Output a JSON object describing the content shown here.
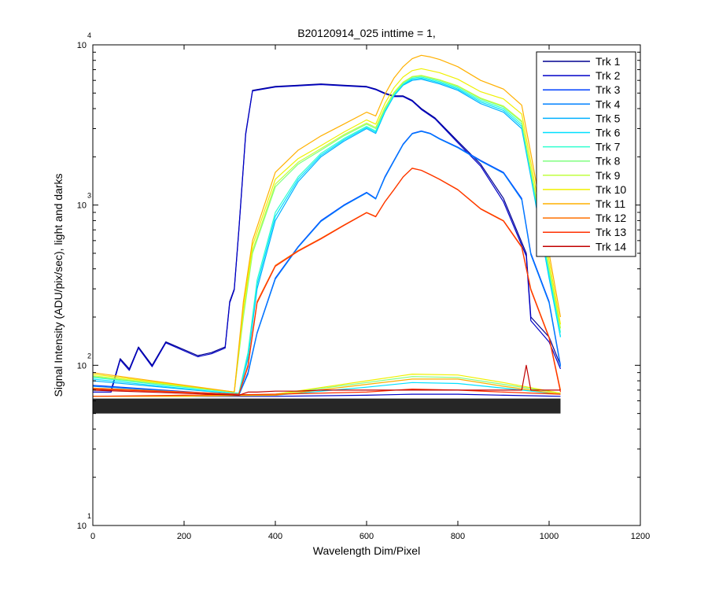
{
  "chart_data": {
    "type": "line",
    "title": "B20120914_025 inttime = 1,",
    "xlabel": "Wavelength Dim/Pixel",
    "ylabel": "Signal Intensity (ADU/pix/sec), light and darks",
    "xlim": [
      0,
      1200
    ],
    "ylim": [
      10,
      10000
    ],
    "yscale": "log",
    "grid": false,
    "legend": "top-right",
    "x_ticks": [
      "0",
      "200",
      "400",
      "600",
      "800",
      "1000",
      "1200"
    ],
    "x_tick_values": [
      0,
      200,
      400,
      600,
      800,
      1000,
      1200
    ],
    "y_tick_values": [
      10,
      100,
      1000,
      10000
    ],
    "y_ticks": [
      {
        "base": "10",
        "exp": "1"
      },
      {
        "base": "10",
        "exp": "2"
      },
      {
        "base": "10",
        "exp": "3"
      },
      {
        "base": "10",
        "exp": "4"
      }
    ],
    "series": [
      {
        "name": "Trk 1",
        "color": "#000090",
        "x": [
          0,
          40,
          60,
          80,
          100,
          130,
          160,
          200,
          230,
          260,
          290,
          300,
          310,
          320,
          335,
          350,
          400,
          450,
          500,
          550,
          600,
          620,
          640,
          660,
          680,
          700,
          720,
          750,
          800,
          850,
          900,
          950,
          960,
          1000,
          1025
        ],
        "y": [
          70,
          70,
          110,
          95,
          130,
          100,
          140,
          125,
          115,
          120,
          130,
          250,
          300,
          700,
          2800,
          5200,
          5500,
          5600,
          5700,
          5600,
          5500,
          5300,
          5000,
          4800,
          4800,
          4500,
          4000,
          3500,
          2500,
          1800,
          1100,
          500,
          200,
          150,
          100
        ]
      },
      {
        "name": "Trk 2",
        "color": "#0000c8",
        "x": [
          0,
          40,
          60,
          80,
          100,
          130,
          160,
          200,
          230,
          260,
          290,
          300,
          310,
          320,
          335,
          350,
          400,
          450,
          500,
          550,
          600,
          620,
          640,
          660,
          680,
          700,
          720,
          750,
          800,
          850,
          900,
          950,
          960,
          1000,
          1025
        ],
        "y": [
          68,
          68,
          108,
          93,
          128,
          98,
          138,
          123,
          113,
          118,
          128,
          245,
          295,
          690,
          2750,
          5150,
          5450,
          5550,
          5650,
          5550,
          5450,
          5250,
          4950,
          4750,
          4750,
          4450,
          3950,
          3450,
          2450,
          1750,
          1050,
          480,
          190,
          140,
          95
        ]
      },
      {
        "name": "Trk 3",
        "color": "#0040ff",
        "x": [
          0,
          320,
          340,
          360,
          400,
          450,
          500,
          550,
          600,
          620,
          640,
          660,
          680,
          700,
          720,
          740,
          760,
          800,
          850,
          900,
          940,
          960,
          1000,
          1025
        ],
        "y": [
          75,
          65,
          90,
          160,
          350,
          550,
          800,
          1000,
          1200,
          1100,
          1500,
          1900,
          2400,
          2800,
          2900,
          2800,
          2600,
          2300,
          1900,
          1600,
          1100,
          500,
          250,
          100
        ]
      },
      {
        "name": "Trk 4",
        "color": "#0080ff",
        "x": [
          0,
          320,
          340,
          360,
          400,
          450,
          500,
          550,
          600,
          620,
          640,
          660,
          680,
          700,
          720,
          740,
          760,
          800,
          850,
          900,
          940,
          960,
          1000,
          1025
        ],
        "y": [
          74,
          65,
          88,
          158,
          345,
          545,
          790,
          990,
          1190,
          1090,
          1480,
          1880,
          2380,
          2780,
          2880,
          2780,
          2580,
          2280,
          1880,
          1580,
          1080,
          490,
          245,
          98
        ]
      },
      {
        "name": "Trk 5",
        "color": "#00b0ff",
        "x": [
          0,
          320,
          340,
          360,
          400,
          450,
          500,
          550,
          600,
          620,
          640,
          660,
          680,
          700,
          720,
          740,
          760,
          800,
          850,
          900,
          940,
          960,
          1000,
          1025
        ],
        "y": [
          80,
          66,
          110,
          300,
          800,
          1400,
          2000,
          2500,
          3000,
          2800,
          3800,
          4800,
          5600,
          6000,
          6100,
          5900,
          5700,
          5200,
          4300,
          3800,
          3000,
          1500,
          350,
          150
        ]
      },
      {
        "name": "Trk 6",
        "color": "#00e0ff",
        "x": [
          0,
          320,
          340,
          360,
          400,
          450,
          500,
          550,
          600,
          620,
          640,
          660,
          680,
          700,
          720,
          740,
          760,
          800,
          850,
          900,
          940,
          960,
          1000,
          1025
        ],
        "y": [
          82,
          66,
          115,
          320,
          850,
          1450,
          2050,
          2550,
          3050,
          2850,
          3850,
          4850,
          5650,
          6100,
          6200,
          6000,
          5800,
          5300,
          4400,
          3900,
          3100,
          1550,
          360,
          150
        ]
      },
      {
        "name": "Trk 7",
        "color": "#30ffd0",
        "x": [
          0,
          320,
          340,
          360,
          400,
          450,
          500,
          550,
          600,
          620,
          640,
          660,
          680,
          700,
          720,
          740,
          760,
          800,
          850,
          900,
          940,
          960,
          1000,
          1025
        ],
        "y": [
          84,
          67,
          120,
          340,
          900,
          1500,
          2100,
          2600,
          3100,
          2900,
          3900,
          4900,
          5700,
          6200,
          6300,
          6100,
          5900,
          5400,
          4500,
          4000,
          3200,
          1600,
          380,
          160
        ]
      },
      {
        "name": "Trk 8",
        "color": "#80ff80",
        "x": [
          0,
          310,
          330,
          350,
          400,
          450,
          500,
          550,
          600,
          620,
          640,
          660,
          680,
          700,
          720,
          740,
          760,
          800,
          850,
          900,
          940,
          960,
          1000,
          1025
        ],
        "y": [
          85,
          68,
          200,
          500,
          1300,
          1800,
          2200,
          2700,
          3200,
          3000,
          4000,
          5000,
          5800,
          6300,
          6400,
          6200,
          6000,
          5500,
          4600,
          4100,
          3300,
          1650,
          400,
          170
        ]
      },
      {
        "name": "Trk 9",
        "color": "#c0ff40",
        "x": [
          0,
          310,
          330,
          350,
          400,
          450,
          500,
          550,
          600,
          620,
          640,
          660,
          680,
          700,
          720,
          740,
          760,
          800,
          850,
          900,
          940,
          960,
          1000,
          1025
        ],
        "y": [
          86,
          68,
          210,
          520,
          1350,
          1850,
          2250,
          2750,
          3250,
          3050,
          4050,
          5050,
          5850,
          6350,
          6450,
          6250,
          6050,
          5550,
          4650,
          4150,
          3350,
          1680,
          410,
          170
        ]
      },
      {
        "name": "Trk 10",
        "color": "#f0f000",
        "x": [
          0,
          310,
          330,
          350,
          400,
          450,
          500,
          550,
          600,
          620,
          640,
          660,
          680,
          700,
          720,
          740,
          760,
          800,
          850,
          900,
          940,
          960,
          1000,
          1025
        ],
        "y": [
          88,
          68,
          230,
          560,
          1450,
          1950,
          2350,
          2850,
          3400,
          3200,
          4300,
          5400,
          6300,
          6900,
          7100,
          6900,
          6700,
          6100,
          5100,
          4600,
          3700,
          1850,
          450,
          180
        ]
      },
      {
        "name": "Trk 11",
        "color": "#ffb000",
        "x": [
          0,
          310,
          330,
          350,
          400,
          450,
          500,
          550,
          600,
          620,
          640,
          660,
          680,
          700,
          720,
          740,
          760,
          800,
          850,
          900,
          940,
          960,
          1000,
          1025
        ],
        "y": [
          90,
          68,
          250,
          600,
          1600,
          2200,
          2700,
          3200,
          3800,
          3600,
          4900,
          6200,
          7300,
          8200,
          8600,
          8400,
          8100,
          7300,
          6000,
          5300,
          4200,
          2100,
          500,
          200
        ]
      },
      {
        "name": "Trk 12",
        "color": "#ff7000",
        "x": [
          0,
          320,
          340,
          360,
          400,
          450,
          500,
          550,
          600,
          620,
          640,
          660,
          680,
          700,
          720,
          740,
          760,
          800,
          850,
          900,
          940,
          960,
          1000,
          1025
        ],
        "y": [
          72,
          66,
          100,
          250,
          420,
          520,
          620,
          750,
          900,
          850,
          1050,
          1250,
          1500,
          1700,
          1650,
          1550,
          1450,
          1250,
          950,
          800,
          550,
          300,
          150,
          70
        ]
      },
      {
        "name": "Trk 13",
        "color": "#ff3000",
        "x": [
          0,
          320,
          340,
          360,
          400,
          450,
          500,
          550,
          600,
          620,
          640,
          660,
          680,
          700,
          720,
          740,
          760,
          800,
          850,
          900,
          940,
          960,
          1000,
          1025
        ],
        "y": [
          71,
          66,
          98,
          245,
          415,
          515,
          615,
          745,
          895,
          845,
          1045,
          1245,
          1495,
          1695,
          1645,
          1545,
          1445,
          1245,
          945,
          795,
          545,
          295,
          148,
          68
        ]
      },
      {
        "name": "Trk 14",
        "color": "#c00000",
        "x": [
          0,
          320,
          340,
          360,
          400,
          450,
          500,
          550,
          600,
          620,
          640,
          660,
          680,
          700,
          720,
          740,
          760,
          800,
          850,
          900,
          940,
          950,
          960,
          1000,
          1025
        ],
        "y": [
          70,
          65,
          68,
          68,
          69,
          69,
          70,
          70,
          70,
          70,
          70,
          70,
          70,
          70,
          70,
          70,
          70,
          70,
          70,
          70,
          70,
          100,
          70,
          70,
          70
        ]
      }
    ],
    "dark_floor": {
      "color": "#000000",
      "x": [
        0,
        1025
      ],
      "y": [
        50,
        62
      ]
    },
    "dark_bands": [
      {
        "color": "#0000c8",
        "x": [
          0,
          200,
          400,
          600,
          700,
          800,
          900,
          1025
        ],
        "y": [
          64,
          64,
          64,
          65,
          66,
          66,
          65,
          64
        ]
      },
      {
        "color": "#00e0ff",
        "x": [
          0,
          200,
          400,
          600,
          700,
          800,
          900,
          1025
        ],
        "y": [
          64,
          64,
          65,
          73,
          78,
          77,
          72,
          66
        ]
      },
      {
        "color": "#80ff80",
        "x": [
          0,
          200,
          400,
          600,
          700,
          800,
          900,
          1025
        ],
        "y": [
          64,
          64,
          66,
          78,
          85,
          84,
          76,
          67
        ]
      },
      {
        "color": "#f0f000",
        "x": [
          0,
          200,
          400,
          600,
          700,
          800,
          900,
          1025
        ],
        "y": [
          64,
          64,
          66,
          80,
          88,
          87,
          78,
          67
        ]
      },
      {
        "color": "#ffb000",
        "x": [
          0,
          200,
          400,
          600,
          700,
          800,
          900,
          1025
        ],
        "y": [
          64,
          64,
          65,
          76,
          82,
          82,
          74,
          66
        ]
      },
      {
        "color": "#ff3000",
        "x": [
          0,
          200,
          400,
          600,
          700,
          800,
          900,
          1025
        ],
        "y": [
          64,
          65,
          66,
          68,
          71,
          70,
          68,
          66
        ]
      }
    ]
  }
}
